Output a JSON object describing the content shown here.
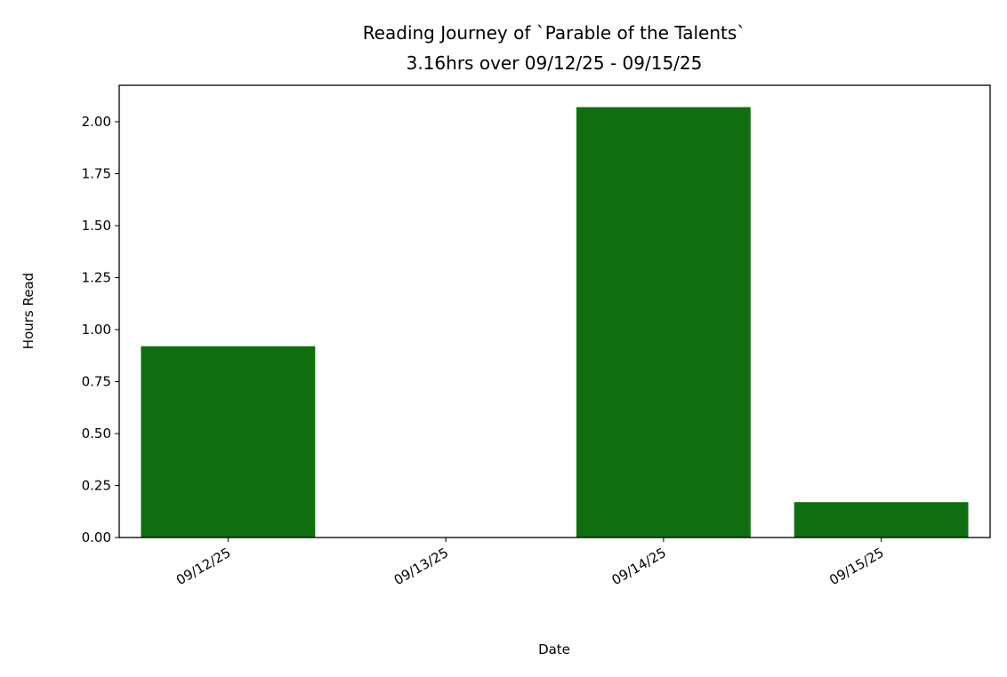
{
  "chart_data": {
    "type": "bar",
    "title": "Reading Journey of `Parable of the Talents`",
    "subtitle": "3.16hrs over 09/12/25 - 09/15/25",
    "x_label": "Date",
    "y_label": "Hours Read",
    "categories": [
      "09/12/25",
      "09/13/25",
      "09/14/25",
      "09/15/25"
    ],
    "values": [
      0.92,
      0,
      2.07,
      0.17
    ],
    "color": "#0f6e0f",
    "ylim": [
      0,
      2.175
    ],
    "yticks": [
      {
        "value": 0,
        "label": "0.00"
      },
      {
        "value": 0.25,
        "label": "0.25"
      },
      {
        "value": 0.5,
        "label": "0.50"
      },
      {
        "value": 0.75,
        "label": "0.75"
      },
      {
        "value": 1,
        "label": "1.00"
      },
      {
        "value": 1.25,
        "label": "1.25"
      },
      {
        "value": 1.5,
        "label": "1.50"
      },
      {
        "value": 1.75,
        "label": "1.75"
      },
      {
        "value": 2,
        "label": "2.00"
      }
    ],
    "grid": false
  }
}
